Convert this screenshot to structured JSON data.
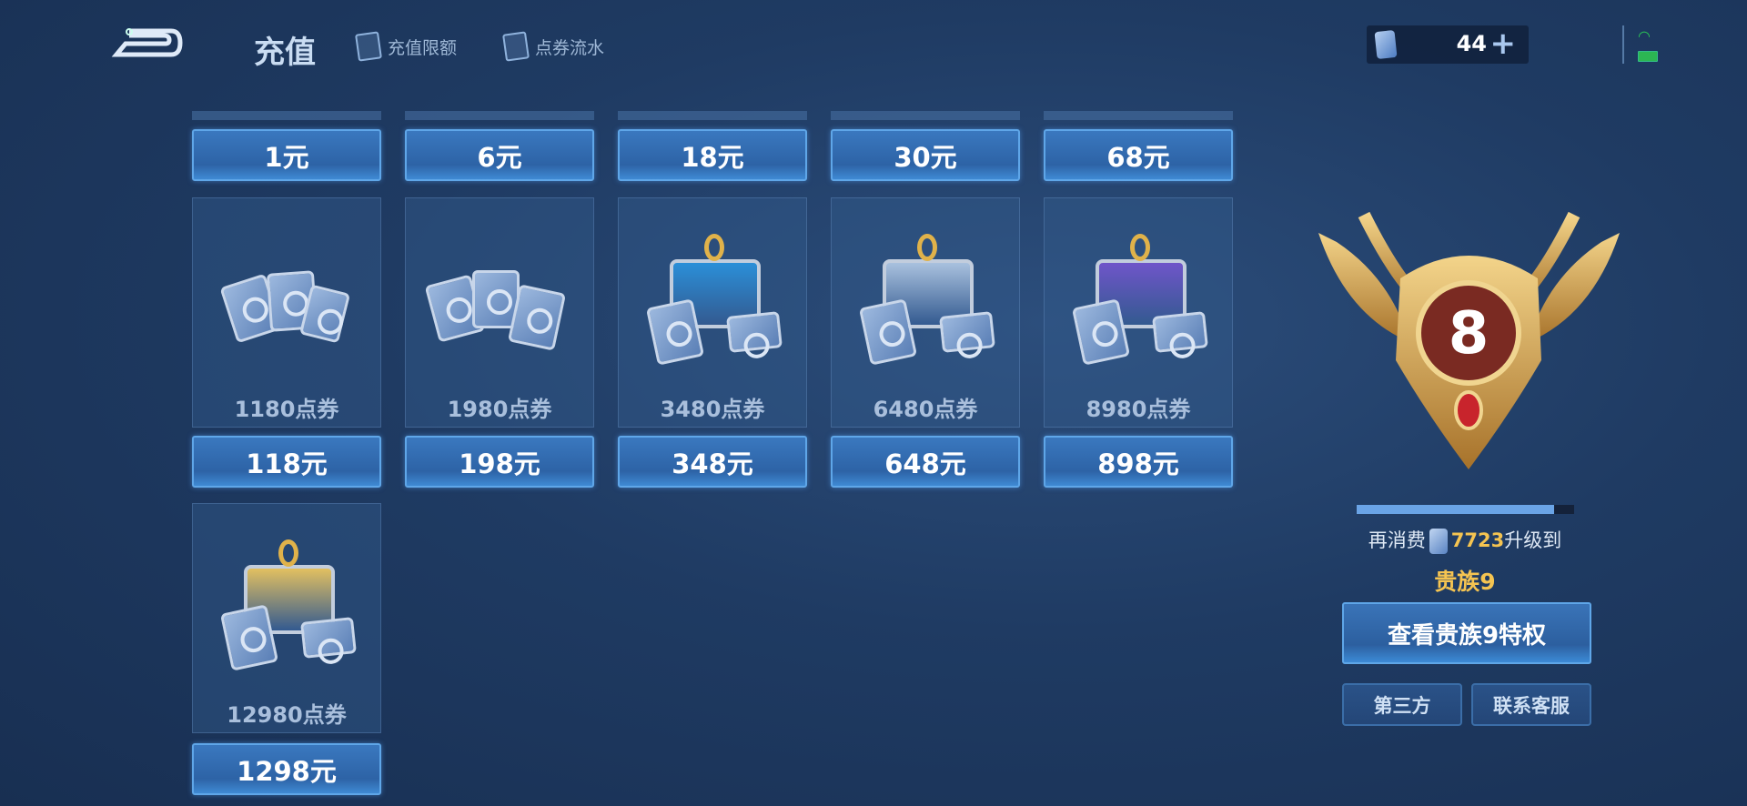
{
  "header": {
    "title": "充值",
    "tabs": [
      {
        "label": "充值限额",
        "icon": "cards-icon"
      },
      {
        "label": "点券流水",
        "icon": "voucher-icon"
      }
    ]
  },
  "currency": {
    "amount": "44",
    "icon": "voucher-icon",
    "plus": "+"
  },
  "top_row_prices": [
    "1元",
    "6元",
    "18元",
    "30元",
    "68元"
  ],
  "packs": [
    {
      "label": "1180点券",
      "price": "118元",
      "art": "cards"
    },
    {
      "label": "1980点券",
      "price": "198元",
      "art": "cards-pile"
    },
    {
      "label": "3480点券",
      "price": "348元",
      "art": "chest",
      "chest_color": "#2b8fd8"
    },
    {
      "label": "6480点券",
      "price": "648元",
      "art": "chest",
      "chest_color": "#a9c1de"
    },
    {
      "label": "8980点券",
      "price": "898元",
      "art": "chest",
      "chest_color": "#6f55c9"
    },
    {
      "label": "12980点券",
      "price": "1298元",
      "art": "chest",
      "chest_color": "#e2c060"
    }
  ],
  "noble": {
    "level": "8",
    "progress_percent": 91,
    "prefix": "再消费",
    "amount": "7723",
    "suffix": "升级到",
    "next": "贵族9",
    "view_button": "查看贵族9特权"
  },
  "buttons": {
    "third_party": "第三方",
    "support": "联系客服"
  },
  "colors": {
    "accent": "#3a78bf",
    "gold": "#f5c451",
    "wifi": "#29c255"
  }
}
